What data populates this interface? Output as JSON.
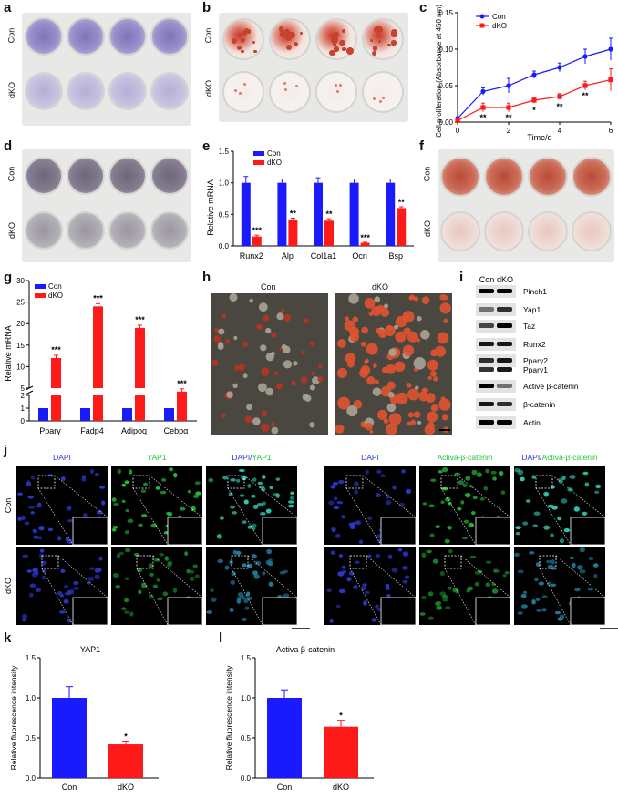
{
  "panels": {
    "a": "a",
    "b": "b",
    "c": "c",
    "d": "d",
    "e": "e",
    "f": "f",
    "g": "g",
    "h": "h",
    "i": "i",
    "j": "j",
    "k": "k",
    "l": "l"
  },
  "rows": {
    "con": "Con",
    "dko": "dKO"
  },
  "colors": {
    "con": "#1a1aff",
    "dko": "#ff1a1a",
    "crystal": "#8e80c2",
    "alizarin": "#c8402e",
    "alp": "#7a7090",
    "fluor_blue": "#2a3ad0",
    "fluor_green": "#22c23a"
  },
  "panel_c": {
    "ylabel": "Cell proliferation (Absorbance at 450 nm)",
    "xlabel": "Time/d",
    "legend": [
      "Con",
      "dKO"
    ],
    "sig": [
      "**",
      "**",
      "*",
      "**",
      "**"
    ]
  },
  "panel_e": {
    "ylabel": "Relative mRNA",
    "legend": [
      "Con",
      "dKO"
    ],
    "sig": [
      "***",
      "**",
      "**",
      "***",
      "**"
    ]
  },
  "panel_g": {
    "ylabel": "Relative mRNA",
    "legend": [
      "Con",
      "dKO"
    ],
    "sig": [
      "***",
      "***",
      "***",
      "***"
    ]
  },
  "panel_h": {
    "con": "Con",
    "dko": "dKO"
  },
  "panel_i": {
    "cols": [
      "Con",
      "dKO"
    ],
    "bands": [
      "Pinch1",
      "Yap1",
      "Taz",
      "Runx2",
      "Pparγ2",
      "Pparγ1",
      "Active β-catenin",
      "β-catenin",
      "Actin"
    ]
  },
  "panel_j": {
    "cols": [
      "DAPI",
      "YAP1",
      "DAPI/YAP1",
      "DAPI",
      "Activa-β-catenin",
      "DAPI/Activa-β-catenin"
    ],
    "col_merge_prefix": "DAPI/",
    "merge_1": "YAP1",
    "merge_2": "Activa-β-catenin",
    "rows": [
      "Con",
      "dKO"
    ]
  },
  "panel_k": {
    "title": "YAP1",
    "ylabel": "Relative fluorescence intensity",
    "sig": "*"
  },
  "panel_l": {
    "title": "Activa β-catenin",
    "ylabel": "Relative fluorescence intensity",
    "sig": "*"
  },
  "chart_data": [
    {
      "id": "c",
      "type": "line",
      "x": [
        0,
        1,
        2,
        3,
        4,
        5,
        6
      ],
      "xlim": [
        0,
        6
      ],
      "ylim": [
        0,
        0.15
      ],
      "xticks": [
        "0",
        "2",
        "4",
        "6"
      ],
      "yticks": [
        "0.00",
        "0.05",
        "0.10",
        "0.15"
      ],
      "series": [
        {
          "name": "Con",
          "values": [
            0.005,
            0.042,
            0.05,
            0.065,
            0.075,
            0.09,
            0.1
          ],
          "err": [
            0.002,
            0.005,
            0.01,
            0.005,
            0.006,
            0.01,
            0.015
          ]
        },
        {
          "name": "dKO",
          "values": [
            0.002,
            0.02,
            0.02,
            0.03,
            0.035,
            0.05,
            0.058
          ],
          "err": [
            0.002,
            0.006,
            0.006,
            0.004,
            0.004,
            0.006,
            0.015
          ]
        }
      ]
    },
    {
      "id": "e",
      "type": "bar",
      "categories": [
        "Runx2",
        "Alp",
        "Col1a1",
        "Ocn",
        "Bsp"
      ],
      "ylim": [
        0,
        1.5
      ],
      "yticks": [
        "0.0",
        "0.5",
        "1.0",
        "1.5"
      ],
      "series": [
        {
          "name": "Con",
          "values": [
            1.0,
            1.0,
            1.0,
            1.0,
            1.0
          ],
          "err": [
            0.1,
            0.06,
            0.08,
            0.06,
            0.06
          ]
        },
        {
          "name": "dKO",
          "values": [
            0.15,
            0.42,
            0.4,
            0.05,
            0.6
          ],
          "err": [
            0.02,
            0.02,
            0.03,
            0.01,
            0.02
          ]
        }
      ]
    },
    {
      "id": "g",
      "type": "bar",
      "categories": [
        "Pparγ",
        "Fadp4",
        "Adipoq",
        "Cebpα"
      ],
      "broken_axis": true,
      "yticks": [
        "0",
        "1",
        "2",
        "5",
        "10",
        "15",
        "20",
        "25",
        "30"
      ],
      "series": [
        {
          "name": "Con",
          "values": [
            1.0,
            1.0,
            1.0,
            1.0
          ]
        },
        {
          "name": "dKO",
          "values": [
            12,
            24,
            19,
            3.4
          ]
        }
      ]
    },
    {
      "id": "k",
      "type": "bar",
      "categories": [
        "Con",
        "dKO"
      ],
      "ylim": [
        0,
        1.5
      ],
      "yticks": [
        "0.0",
        "0.5",
        "1.0",
        "1.5"
      ],
      "values": [
        1.0,
        0.42
      ],
      "err": [
        0.14,
        0.04
      ]
    },
    {
      "id": "l",
      "type": "bar",
      "categories": [
        "Con",
        "dKO"
      ],
      "ylim": [
        0,
        1.5
      ],
      "yticks": [
        "0.0",
        "0.5",
        "1.0",
        "1.5"
      ],
      "values": [
        1.0,
        0.64
      ],
      "err": [
        0.1,
        0.08
      ]
    }
  ]
}
